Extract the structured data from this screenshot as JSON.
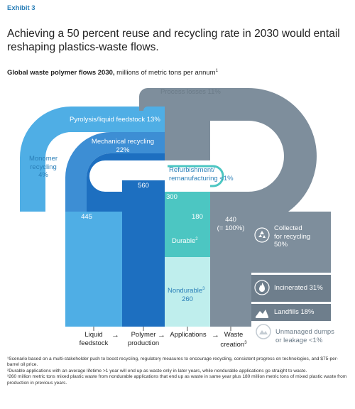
{
  "exhibit": "Exhibit 3",
  "headline": "Achieving a 50 percent reuse and recycling rate in 2030 would entail reshaping plastics-waste flows.",
  "subtitle": {
    "bold": "Global waste polymer flows 2030,",
    "rest": " millions of metric tons per annum",
    "sup": "1"
  },
  "labels": {
    "process_losses": "Process losses 11%",
    "pyrolysis": "Pyrolysis/liquid feedstock 13%",
    "monomer_1": "Monomer",
    "monomer_2": "recycling",
    "monomer_3": "4%",
    "mechanical_1": "Mechanical recycling",
    "mechanical_2": "22%",
    "refurb_1": "Refurbishment/",
    "refurb_2": "remanufacturing <1%",
    "liquid_value": "445",
    "polymer_value": "560",
    "applications_value": "300",
    "durable_value": "180",
    "durable": "Durable",
    "durable_sup": "2",
    "nondurable": "Nondurable",
    "nondurable_sup": "3",
    "nondurable_value": "260",
    "waste_value_1": "440",
    "waste_value_2": "(= 100%)",
    "collected_1": "Collected",
    "collected_2": "for recycling",
    "collected_3": "50%",
    "incinerated": "Incinerated 31%",
    "landfills": "Landfills 18%",
    "unmanaged_1": "Unmanaged dumps",
    "unmanaged_2": "or leakage <1%"
  },
  "stages": {
    "liquid_1": "Liquid",
    "liquid_2": "feedstock",
    "polymer_1": "Polymer",
    "polymer_2": "production",
    "applications": "Applications",
    "waste_1": "Waste",
    "waste_2": "creation",
    "waste_sup": "3",
    "arrow": "→"
  },
  "footnotes": [
    "¹Scenario based on a multi-stakeholder push to boost recycling, regulatory measures to encourage recycling, consistent progress on technologies, and $75-per-barrel oil price.",
    "²Durable applications with an average lifetime >1 year will end up as waste only in later years, while nondurable applications go straight to waste.",
    "³260 million metric tons mixed plastic waste from nondurable applications that end up as waste in same year plus 180 million metric tons of mixed plastic waste from production in previous years."
  ],
  "colors": {
    "light_blue": "#4faee5",
    "mid_blue": "#3d8ed4",
    "dark_blue": "#1d6fc0",
    "teal": "#4cc6c2",
    "pale_teal": "#bfeeed",
    "gray": "#7e8e9c",
    "gray_dark": "#6e7e8c",
    "gray_light": "#c4ccd3"
  },
  "icons": [
    "recycle-icon",
    "flame-icon",
    "landfill-icon",
    "dump-icon"
  ]
}
